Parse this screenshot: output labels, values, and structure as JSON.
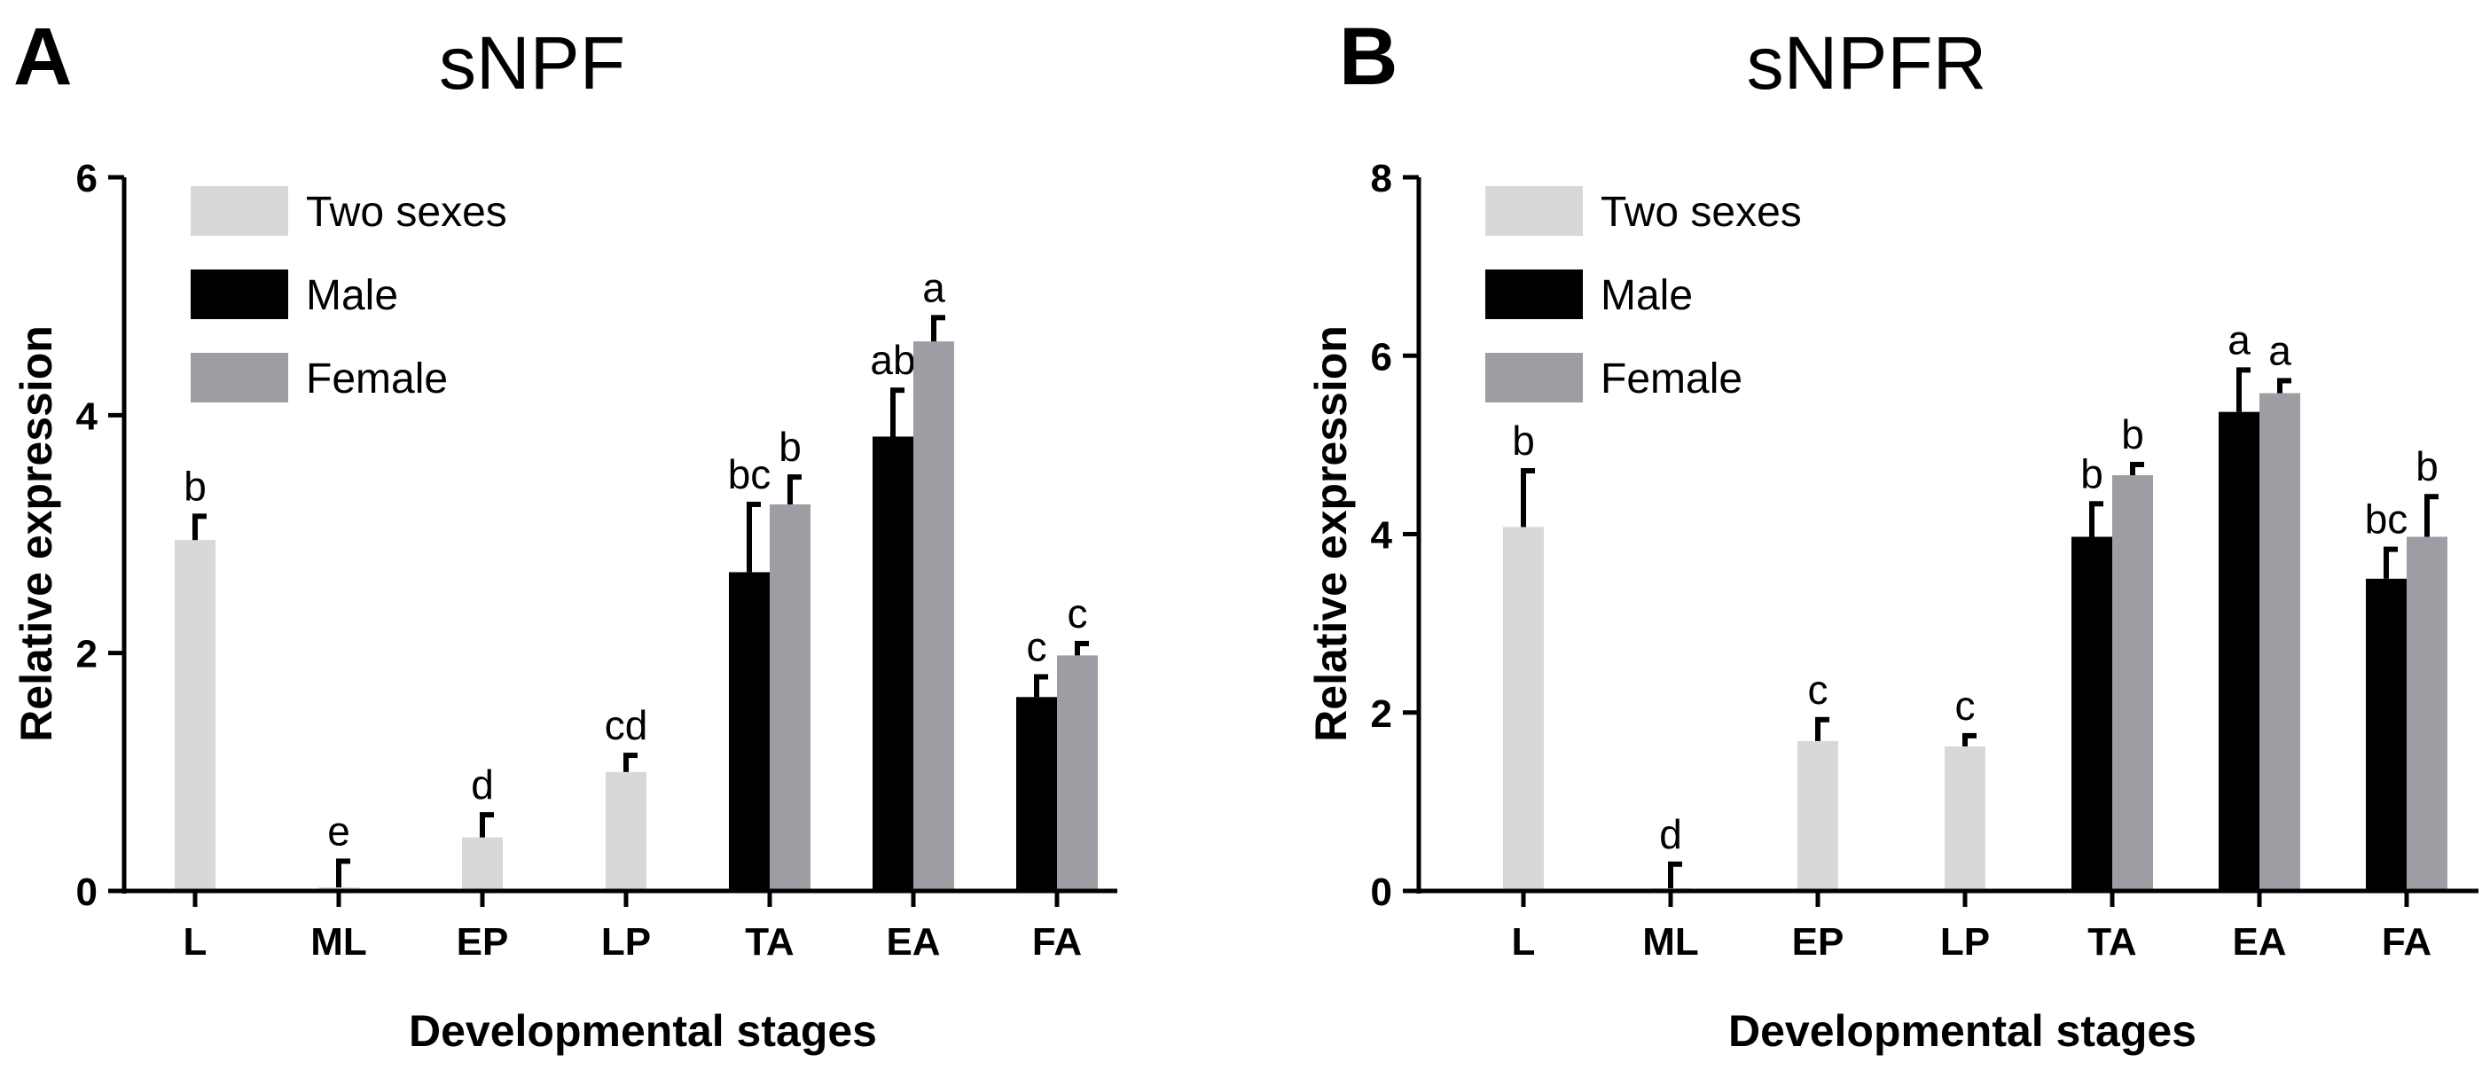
{
  "figure": {
    "legend": [
      {
        "name": "Two sexes",
        "color": "#d8d8d8"
      },
      {
        "name": "Male",
        "color": "#000000"
      },
      {
        "name": "Female",
        "color": "#9e9da3"
      }
    ]
  },
  "chart_data": [
    {
      "type": "bar",
      "panel_label": "A",
      "title": "sNPF",
      "xlabel": "Developmental stages",
      "ylabel": "Relative expression",
      "ylim": [
        0,
        6
      ],
      "yticks": [
        "0",
        "2",
        "4",
        "6"
      ],
      "legend_position": "top-left",
      "categories": [
        "L",
        "ML",
        "EP",
        "LP",
        "TA",
        "EA",
        "FA"
      ],
      "series": [
        {
          "name": "Two sexes",
          "values": [
            2.95,
            0.03,
            0.45,
            1.0,
            null,
            null,
            null
          ],
          "errors": [
            0.2,
            0.22,
            0.19,
            0.14,
            null,
            null,
            null
          ],
          "labels": [
            "b",
            "e",
            "d",
            "cd",
            null,
            null,
            null
          ]
        },
        {
          "name": "Male",
          "values": [
            null,
            null,
            null,
            null,
            2.68,
            3.82,
            1.63
          ],
          "errors": [
            null,
            null,
            null,
            null,
            0.57,
            0.39,
            0.17
          ],
          "labels": [
            null,
            null,
            null,
            null,
            "bc",
            "ab",
            "c"
          ]
        },
        {
          "name": "Female",
          "values": [
            null,
            null,
            null,
            null,
            3.25,
            4.62,
            1.98
          ],
          "errors": [
            null,
            null,
            null,
            null,
            0.23,
            0.2,
            0.1
          ],
          "labels": [
            null,
            null,
            null,
            null,
            "b",
            "a",
            "c"
          ]
        }
      ]
    },
    {
      "type": "bar",
      "panel_label": "B",
      "title": "sNPFR",
      "xlabel": "Developmental stages",
      "ylabel": "Relative expression",
      "ylim": [
        0,
        8
      ],
      "yticks": [
        "0",
        "2",
        "4",
        "6",
        "8"
      ],
      "legend_position": "top-left",
      "categories": [
        "L",
        "ML",
        "EP",
        "LP",
        "TA",
        "EA",
        "FA"
      ],
      "series": [
        {
          "name": "Two sexes",
          "values": [
            4.08,
            0.03,
            1.68,
            1.62,
            null,
            null,
            null
          ],
          "errors": [
            0.63,
            0.27,
            0.24,
            0.12,
            null,
            null,
            null
          ],
          "labels": [
            "b",
            "d",
            "c",
            "c",
            null,
            null,
            null
          ]
        },
        {
          "name": "Male",
          "values": [
            null,
            null,
            null,
            null,
            3.97,
            5.37,
            3.5
          ],
          "errors": [
            null,
            null,
            null,
            null,
            0.37,
            0.47,
            0.33
          ],
          "labels": [
            null,
            null,
            null,
            null,
            "b",
            "a",
            "bc"
          ]
        },
        {
          "name": "Female",
          "values": [
            null,
            null,
            null,
            null,
            4.66,
            5.58,
            3.97
          ],
          "errors": [
            null,
            null,
            null,
            null,
            0.12,
            0.14,
            0.45
          ],
          "labels": [
            null,
            null,
            null,
            null,
            "b",
            "a",
            "b"
          ]
        }
      ]
    }
  ]
}
